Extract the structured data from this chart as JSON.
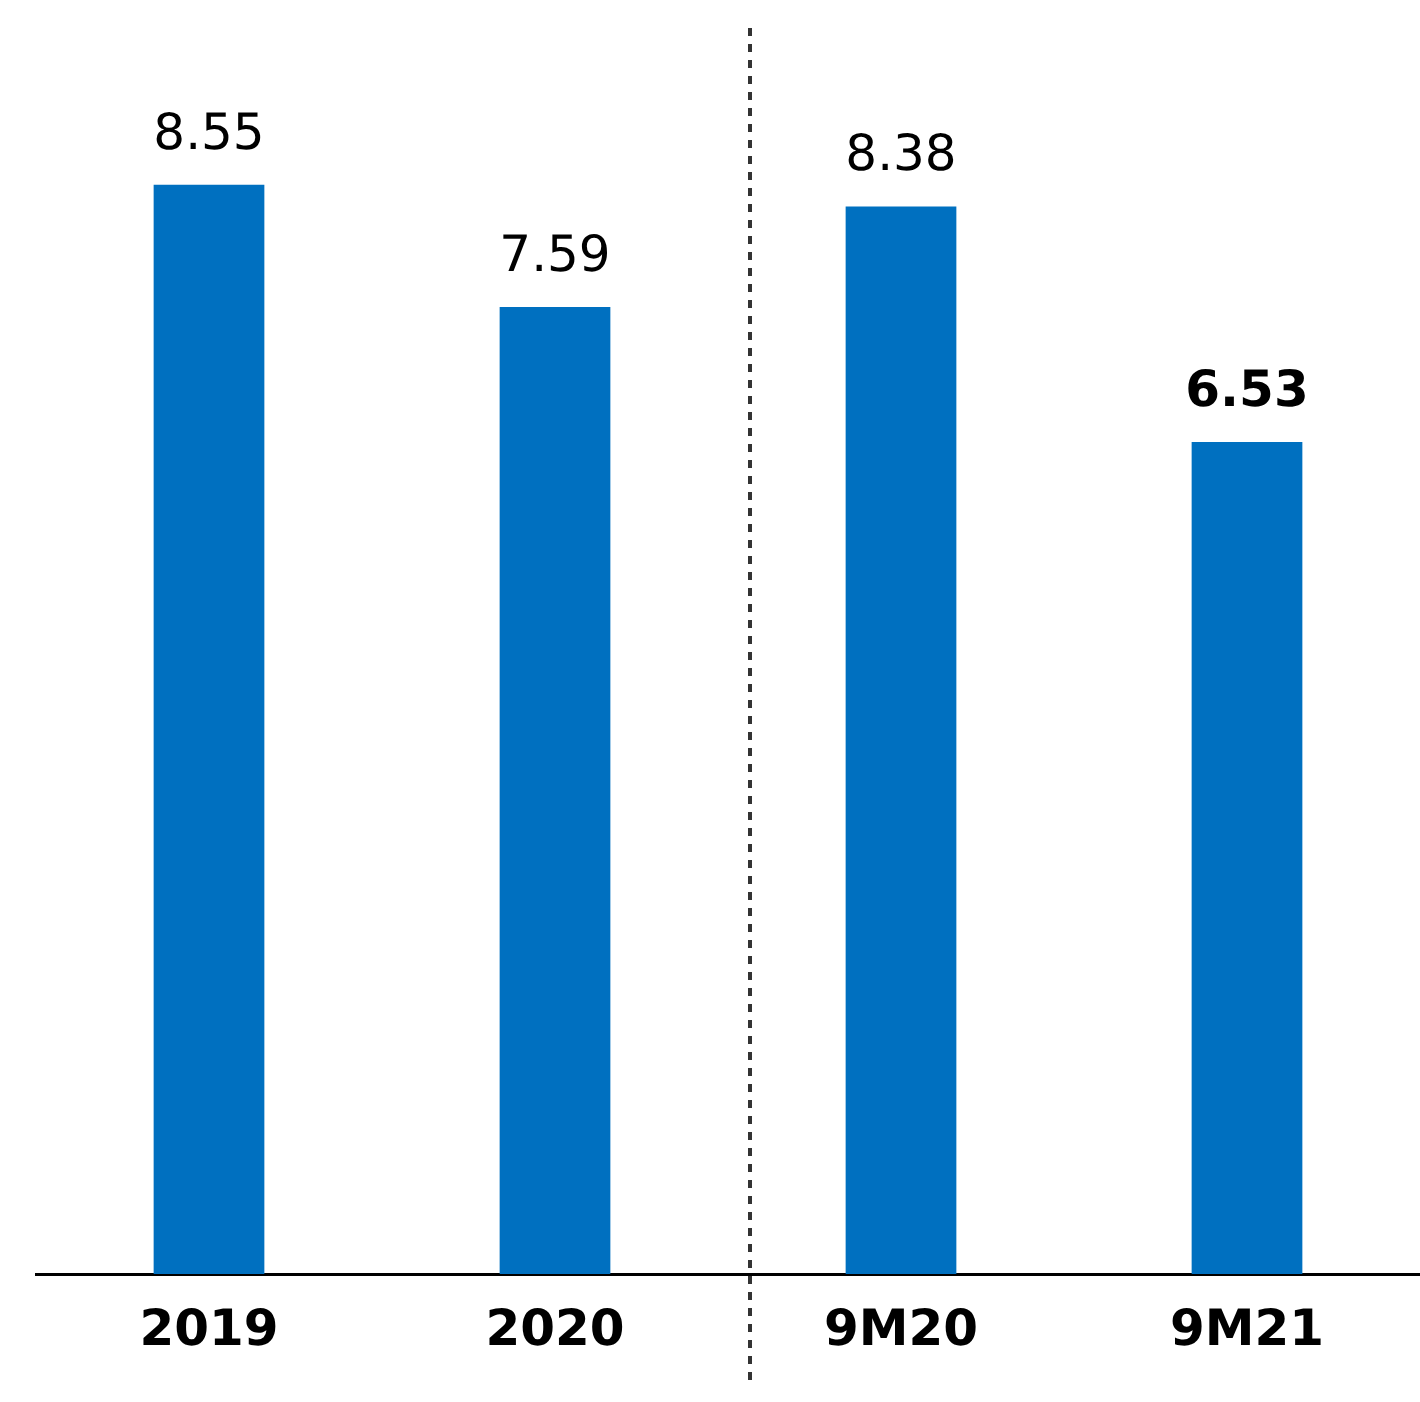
{
  "chart_data": {
    "type": "bar",
    "categories": [
      "2019",
      "2020",
      "9M20",
      "9M21"
    ],
    "values": [
      8.55,
      7.59,
      8.38,
      6.53
    ],
    "color": "#0070c0",
    "tick_labels": "x",
    "data_labels": true,
    "grid": false,
    "legend": false
  }
}
